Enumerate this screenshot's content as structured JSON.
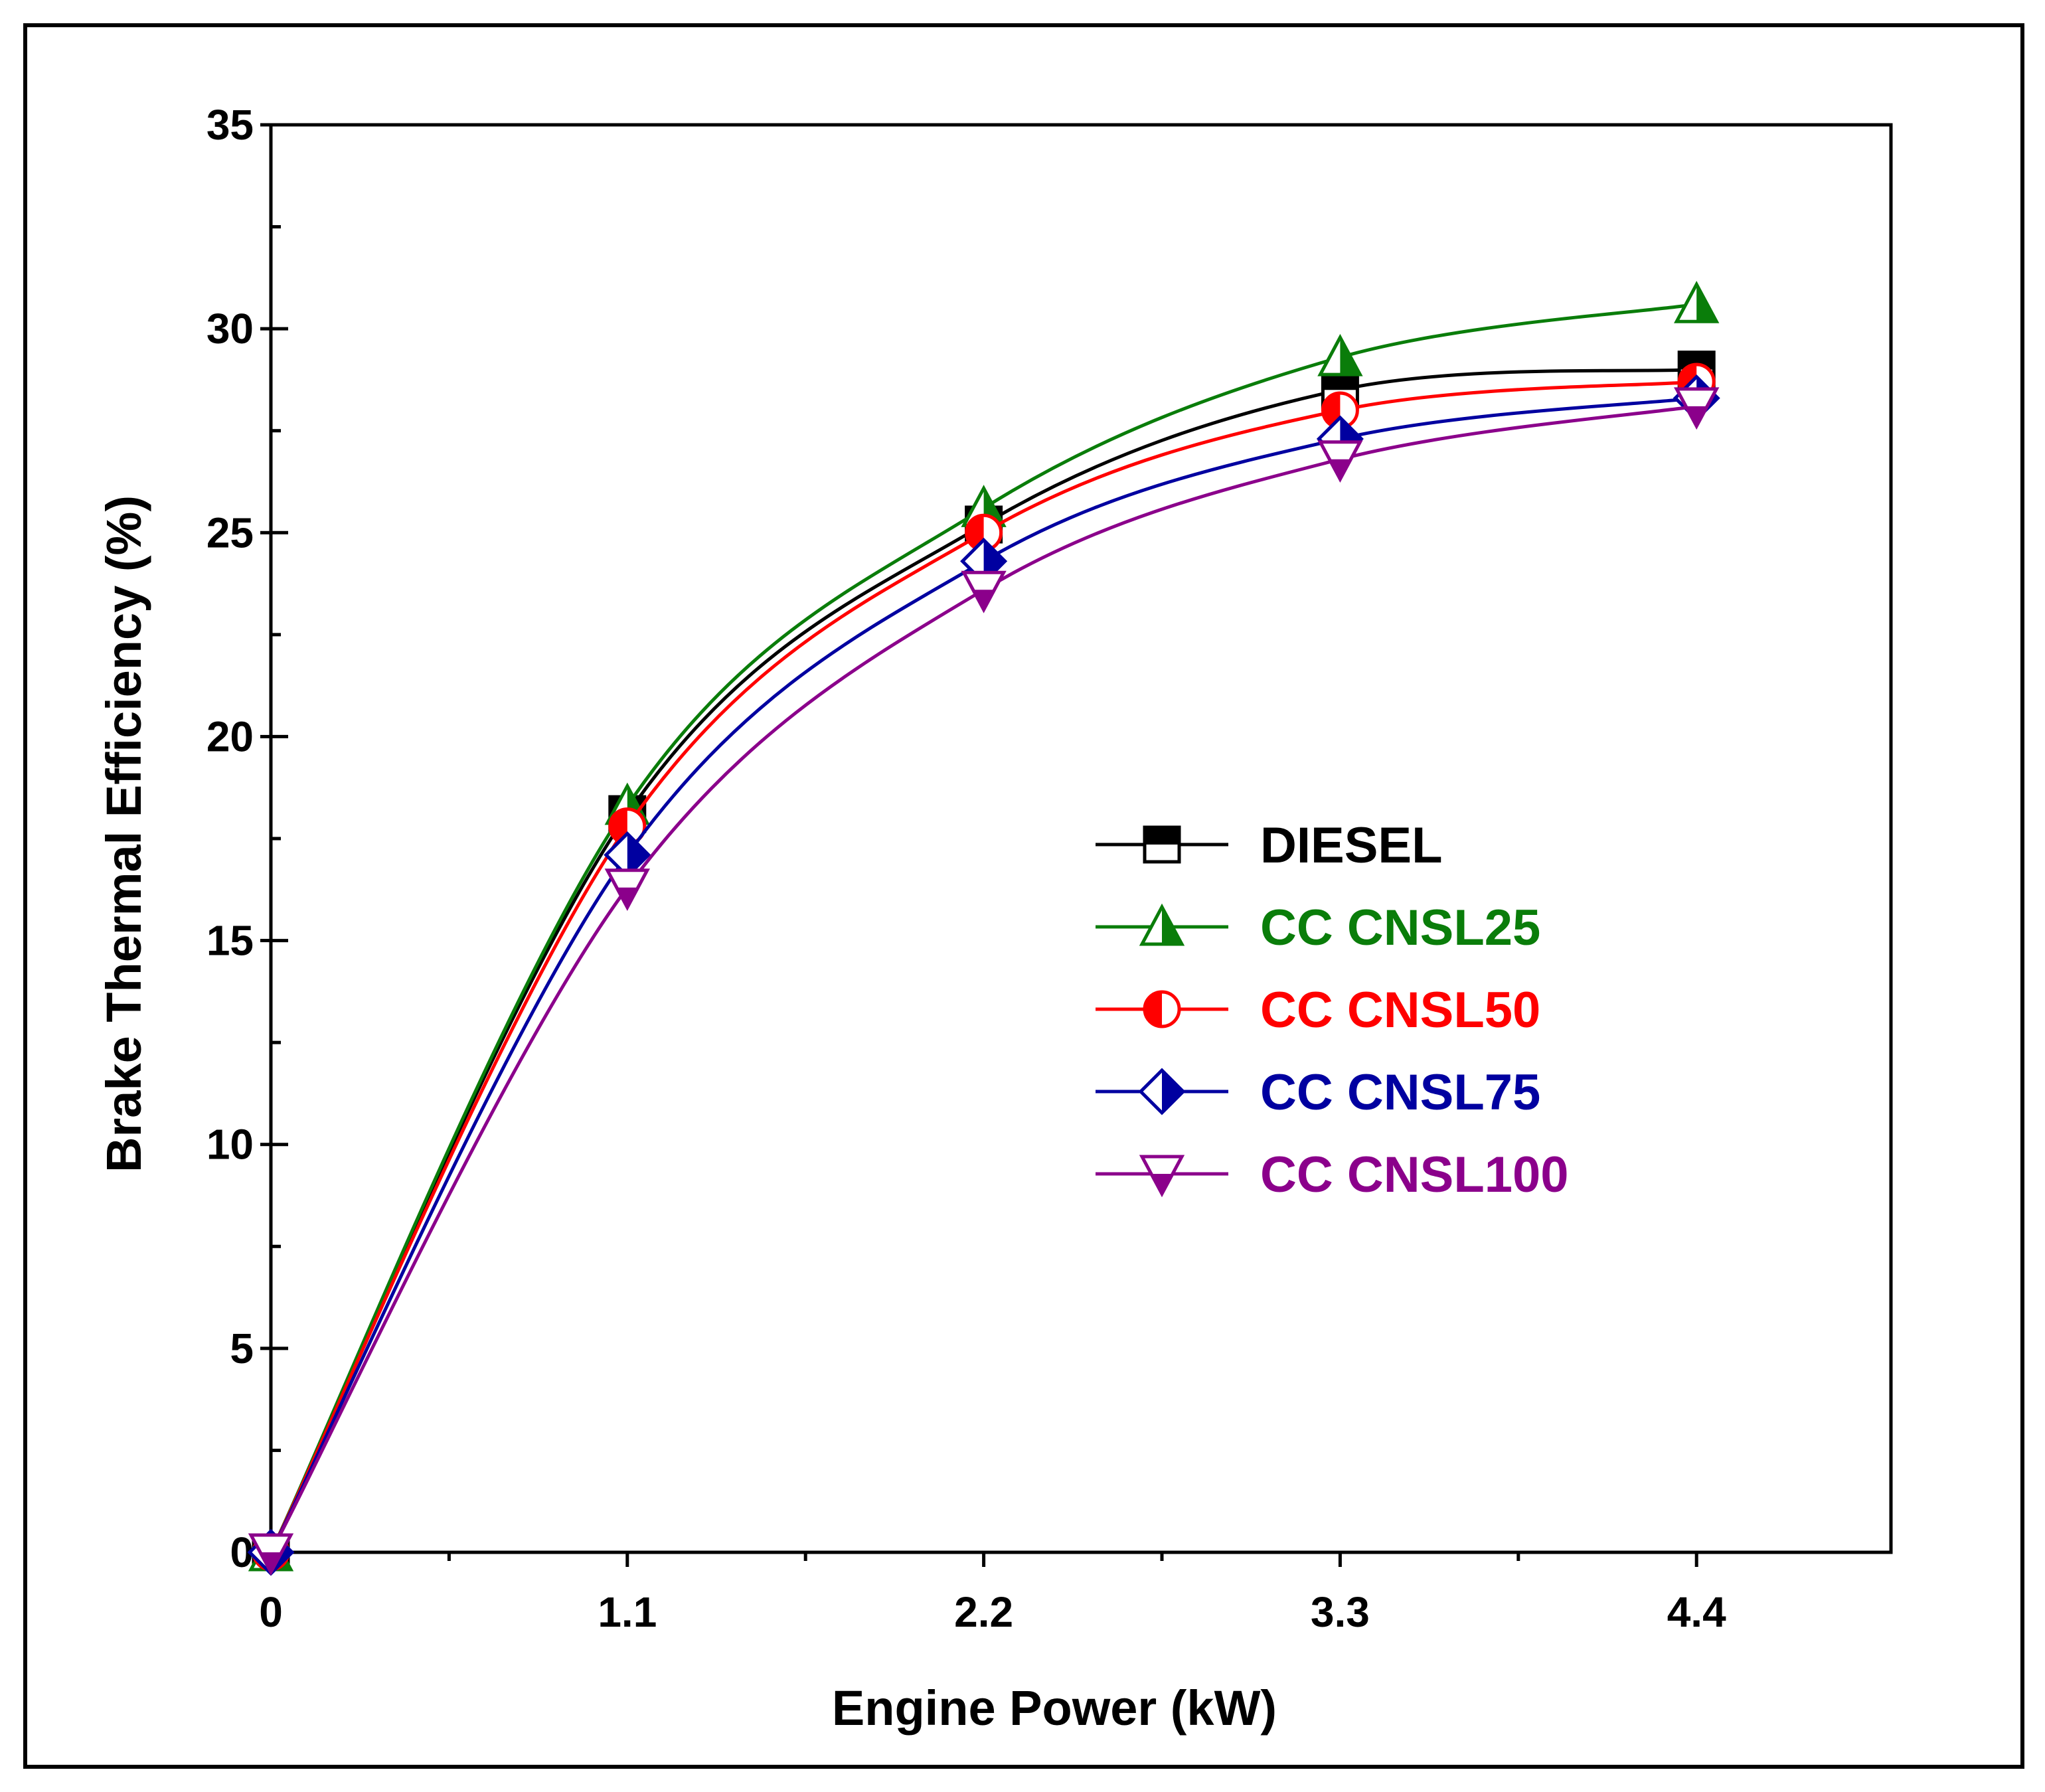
{
  "chart_data": {
    "type": "line",
    "title": "",
    "xlabel": "Engine Power (kW)",
    "ylabel": "Brake Thermal Efficiency (%)",
    "xlim": [
      0,
      5.0
    ],
    "ylim": [
      0,
      35
    ],
    "x": [
      0,
      1.1,
      2.2,
      3.3,
      4.4
    ],
    "x_tick_labels": [
      "0",
      "1.1",
      "2.2",
      "3.3",
      "4.4"
    ],
    "y_ticks": [
      0,
      5,
      10,
      15,
      20,
      25,
      30,
      35
    ],
    "y_tick_labels": [
      "0",
      "5",
      "10",
      "15",
      "20",
      "25",
      "30",
      "35"
    ],
    "grid": false,
    "legend_position": "center-right",
    "series": [
      {
        "name": "DIESEL",
        "color": "#000000",
        "marker": "square-half",
        "values": [
          0,
          18.1,
          25.2,
          28.5,
          29.0
        ]
      },
      {
        "name": "CC CNSL25",
        "color": "#0a7d0a",
        "marker": "triangle-up-half",
        "values": [
          0,
          18.3,
          25.6,
          29.3,
          30.6
        ]
      },
      {
        "name": "CC CNSL50",
        "color": "#ff0000",
        "marker": "circle-half",
        "values": [
          0,
          17.8,
          25.0,
          28.0,
          28.7
        ]
      },
      {
        "name": "CC CNSL75",
        "color": "#0000a0",
        "marker": "diamond-half",
        "values": [
          0,
          17.1,
          24.3,
          27.3,
          28.3
        ]
      },
      {
        "name": "CC CNSL100",
        "color": "#8b008b",
        "marker": "triangle-down-half",
        "values": [
          0,
          16.3,
          23.6,
          26.8,
          28.1
        ]
      }
    ]
  }
}
